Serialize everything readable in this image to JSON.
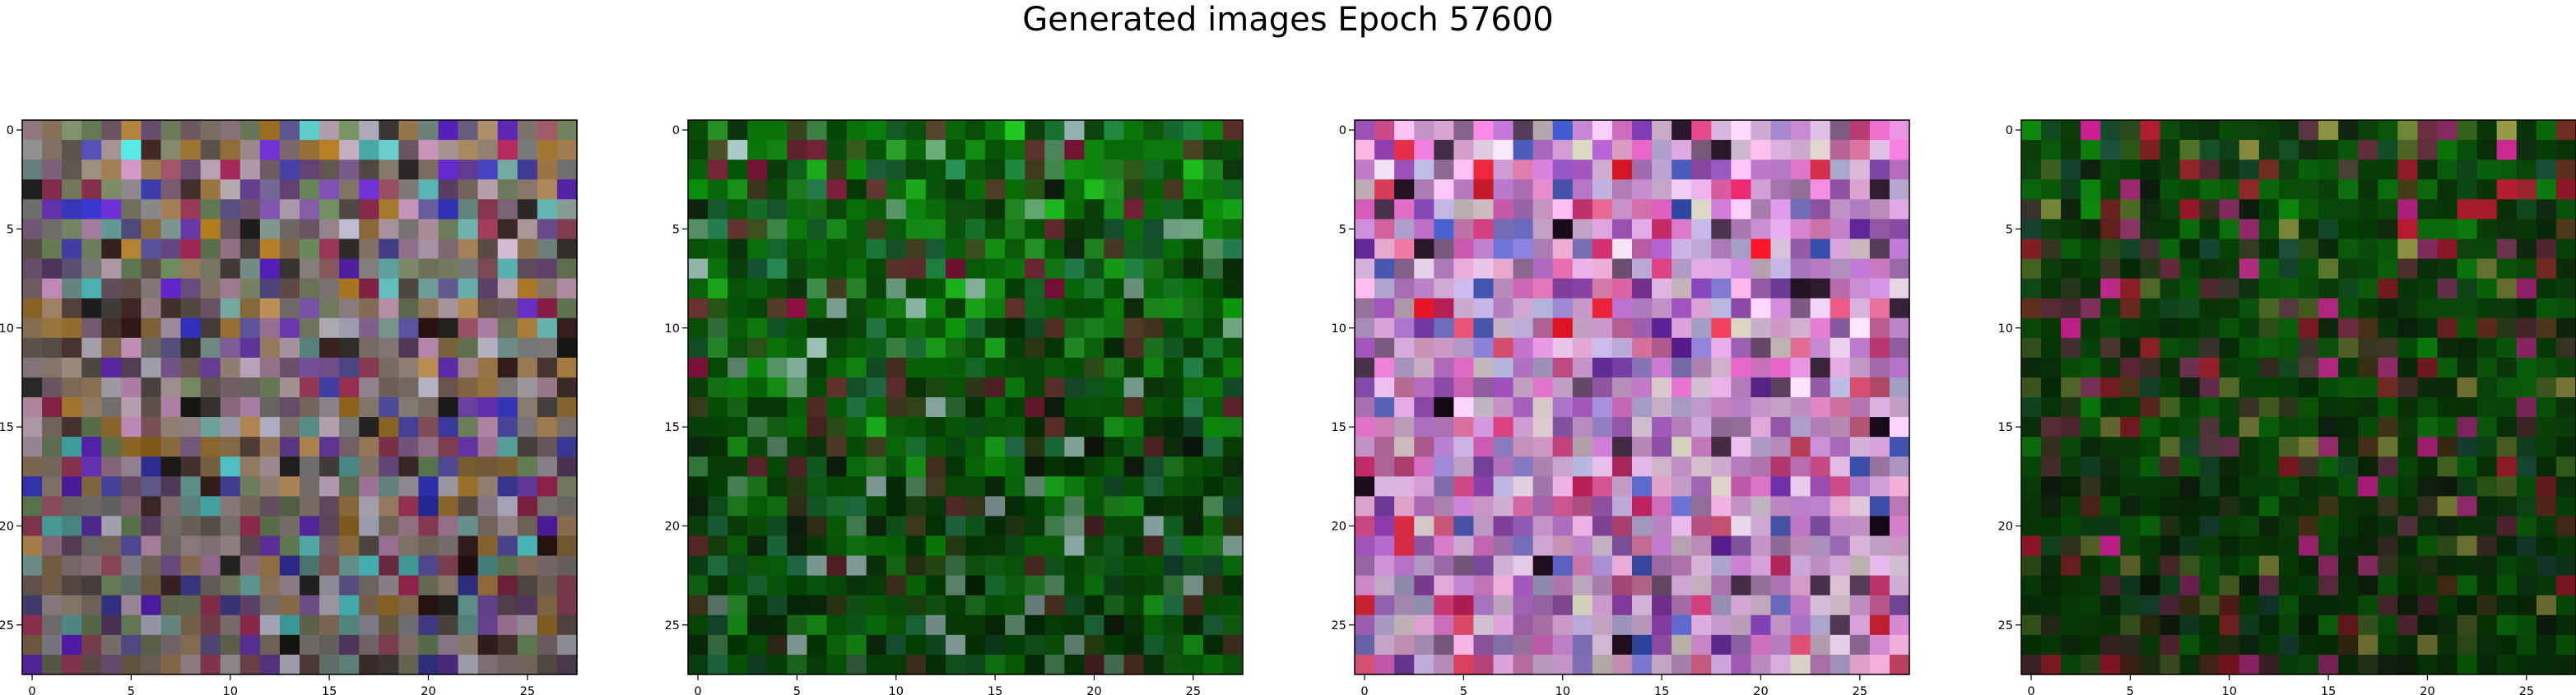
{
  "figure": {
    "title": "Generated images Epoch 57600"
  },
  "chart_data": [
    {
      "type": "heatmap",
      "rows": 28,
      "cols": 28,
      "x_ticks": [
        0,
        5,
        10,
        15,
        20,
        25
      ],
      "y_ticks": [
        0,
        5,
        10,
        15,
        20,
        25
      ],
      "xlim": [
        -0.5,
        27.5
      ],
      "ylim": [
        27.5,
        -0.5
      ],
      "palette": [
        "#9a8a7a",
        "#c8b0c8",
        "#6a8a5a",
        "#b88a50",
        "#c890c0",
        "#5a3a6a",
        "#2a1010",
        "#6020d0",
        "#c0c0d8",
        "#a02050",
        "#b07a20",
        "#3030c0",
        "#808080",
        "#50d0d0",
        "#1a1a1a"
      ],
      "base_color": "#8a7a70",
      "darken_bottom": 0.25
    },
    {
      "type": "heatmap",
      "rows": 28,
      "cols": 28,
      "x_ticks": [
        0,
        5,
        10,
        15,
        20,
        25
      ],
      "y_ticks": [
        0,
        5,
        10,
        15,
        20,
        25
      ],
      "xlim": [
        -0.5,
        27.5
      ],
      "ylim": [
        27.5,
        -0.5
      ],
      "palette": [
        "#0a6a0a",
        "#0c800c",
        "#045004",
        "#0a3a0a",
        "#063006",
        "#30a030",
        "#0c9a0c",
        "#101a10",
        "#1a5a3a",
        "#2a8a5a",
        "#6a3030",
        "#b0d0d0",
        "#8a1040",
        "#20c020"
      ],
      "base_color": "#0a6a0a",
      "darken_bottom": 0.35
    },
    {
      "type": "heatmap",
      "rows": 28,
      "cols": 28,
      "x_ticks": [
        0,
        5,
        10,
        15,
        20,
        25
      ],
      "y_ticks": [
        0,
        5,
        10,
        15,
        20,
        25
      ],
      "xlim": [
        -0.5,
        27.5
      ],
      "ylim": [
        27.5,
        -0.5
      ],
      "palette": [
        "#d8a0d8",
        "#f0c8f0",
        "#c070c8",
        "#a050b8",
        "#e060c0",
        "#f0e0f0",
        "#8030a0",
        "#d02060",
        "#6020a0",
        "#e01020",
        "#b0b0d8",
        "#1a0a1a",
        "#3050c0",
        "#ffb8e0",
        "#d8d8c0"
      ],
      "base_color": "#d0a0d8",
      "darken_bottom": 0.1
    },
    {
      "type": "heatmap",
      "rows": 28,
      "cols": 28,
      "x_ticks": [
        0,
        5,
        10,
        15,
        20,
        25
      ],
      "y_ticks": [
        0,
        5,
        10,
        15,
        20,
        25
      ],
      "xlim": [
        -0.5,
        27.5
      ],
      "ylim": [
        27.5,
        -0.5
      ],
      "palette": [
        "#0a5a0a",
        "#0a6a0a",
        "#064006",
        "#0c3a0c",
        "#083008",
        "#0a2a0a",
        "#0c800c",
        "#102010",
        "#1a4a3a",
        "#6a2a40",
        "#b01830",
        "#8a8a40",
        "#e020a0"
      ],
      "base_color": "#0a4a0a",
      "darken_bottom": 0.3
    }
  ]
}
